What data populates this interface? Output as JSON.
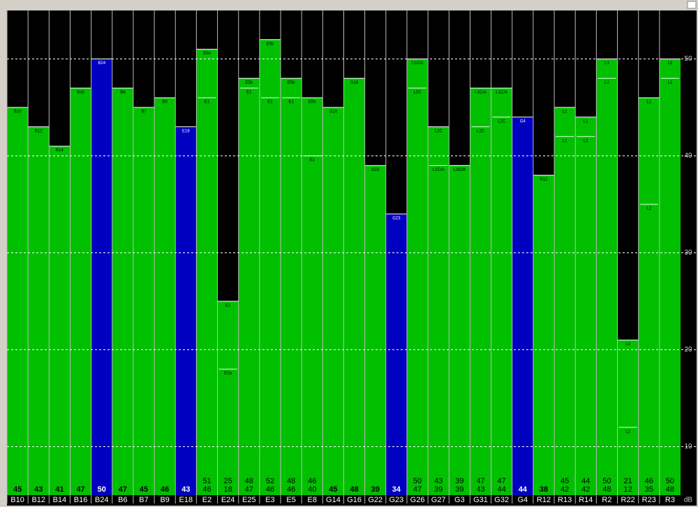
{
  "chart_data": {
    "type": "bar",
    "y_axis_label": "dB",
    "categories": [
      "B10",
      "B12",
      "B14",
      "B16",
      "B24",
      "B6",
      "B7",
      "B9",
      "E18",
      "E2",
      "E24",
      "E25",
      "E3",
      "E5",
      "E8",
      "G14",
      "G16",
      "G22",
      "G23",
      "G26",
      "G27",
      "G3",
      "G31",
      "G32",
      "G4",
      "R12",
      "R13",
      "R14",
      "R2",
      "R22",
      "R23",
      "R3"
    ],
    "bar_colors": [
      "#00c000",
      "#00c000",
      "#00c000",
      "#00c000",
      "#0000c0",
      "#00c000",
      "#00c000",
      "#00c000",
      "#0000c0",
      "#00c000",
      "#00c000",
      "#00c000",
      "#00c000",
      "#00c000",
      "#00c000",
      "#00c000",
      "#00c000",
      "#00c000",
      "#0000c0",
      "#00c000",
      "#00c000",
      "#00c000",
      "#00c000",
      "#00c000",
      "#0000c0",
      "#00c000",
      "#00c000",
      "#00c000",
      "#00c000",
      "#00c000",
      "#00c000",
      "#00c000"
    ],
    "series": [
      {
        "values": [
          45,
          43,
          41,
          47,
          50,
          47,
          45,
          46,
          43,
          51,
          25,
          48,
          52,
          48,
          46,
          45,
          48,
          39,
          34,
          50,
          43,
          39,
          47,
          47,
          44,
          38,
          45,
          44,
          50,
          21,
          46,
          50
        ],
        "labels": [
          "B10",
          "B12",
          "B14",
          "B16",
          "B24",
          "B6",
          "B7",
          "B9",
          "E18",
          "E5b",
          "E1",
          "E5b",
          "E5b",
          "E5b",
          "E5b",
          "G14",
          "G16",
          "G22",
          "G23",
          "L1C/A",
          "L2C",
          "L1C/A",
          "L1C/A",
          "L1C/A",
          "G4",
          "R12",
          "L2",
          "L1",
          "L1",
          "L1",
          "L1",
          "L2"
        ]
      },
      {
        "values": [
          null,
          null,
          null,
          null,
          null,
          null,
          null,
          null,
          null,
          46,
          18,
          47,
          46,
          46,
          40,
          null,
          null,
          null,
          null,
          47,
          39,
          39,
          43,
          44,
          null,
          null,
          42,
          42,
          48,
          12,
          35,
          48
        ],
        "labels": [
          null,
          null,
          null,
          null,
          null,
          null,
          null,
          null,
          null,
          "E1",
          "E5b",
          "E1",
          "E1",
          "E1",
          "E1",
          null,
          null,
          null,
          null,
          "L2C",
          "L1C/A",
          "L1C/A",
          "L2C",
          "L2C",
          null,
          null,
          "L1",
          "L2",
          "L2",
          "L2",
          "L2",
          "L1"
        ]
      }
    ],
    "ylim": [
      5,
      55
    ],
    "yticks": [
      10,
      20,
      30,
      40,
      50
    ],
    "grid": true
  }
}
